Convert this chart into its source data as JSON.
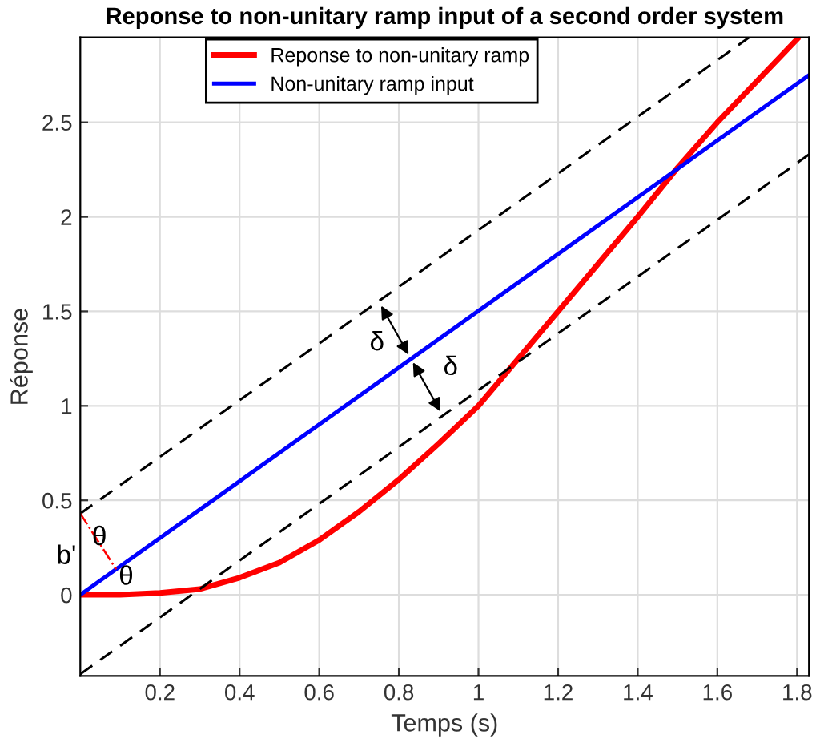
{
  "chart_data": {
    "type": "line",
    "title": "Reponse to non-unitary ramp input of a second order system",
    "xlabel": "Temps (s)",
    "ylabel": "Réponse",
    "xlim": [
      0,
      1.83
    ],
    "ylim": [
      -0.43,
      2.95
    ],
    "xticks": [
      0.2,
      0.4,
      0.6,
      0.8,
      1,
      1.2,
      1.4,
      1.6,
      1.8
    ],
    "yticks": [
      0,
      0.5,
      1,
      1.5,
      2,
      2.5
    ],
    "grid": true,
    "legend": "top",
    "series": [
      {
        "name": "Reponse to non-unitary ramp",
        "color": "#ff0000",
        "x": [
          0,
          0.1,
          0.2,
          0.3,
          0.4,
          0.5,
          0.6,
          0.7,
          0.8,
          0.9,
          1.0,
          1.1,
          1.2,
          1.3,
          1.4,
          1.5,
          1.6,
          1.7,
          1.8
        ],
        "values": [
          0,
          0,
          0.01,
          0.03,
          0.09,
          0.17,
          0.29,
          0.44,
          0.61,
          0.8,
          1.0,
          1.25,
          1.5,
          1.75,
          2.0,
          2.26,
          2.5,
          2.72,
          2.94
        ]
      },
      {
        "name": "Non-unitary ramp input",
        "color": "#0000ff",
        "x": [
          0,
          1.83
        ],
        "values": [
          0,
          2.75
        ]
      },
      {
        "color": "#000000",
        "line_style": "dashed",
        "x": [
          0,
          1.68
        ],
        "values": [
          0.43,
          2.95
        ]
      },
      {
        "color": "#000000",
        "line_style": "dashed",
        "x": [
          0,
          1.83
        ],
        "values": [
          -0.42,
          2.33
        ]
      }
    ],
    "annotations": [
      {
        "text": "δ",
        "x": 0.83,
        "y": 1.25
      },
      {
        "text": "δ",
        "x": 0.83,
        "y": 1.25
      },
      "θ",
      "θ",
      "b'"
    ]
  }
}
